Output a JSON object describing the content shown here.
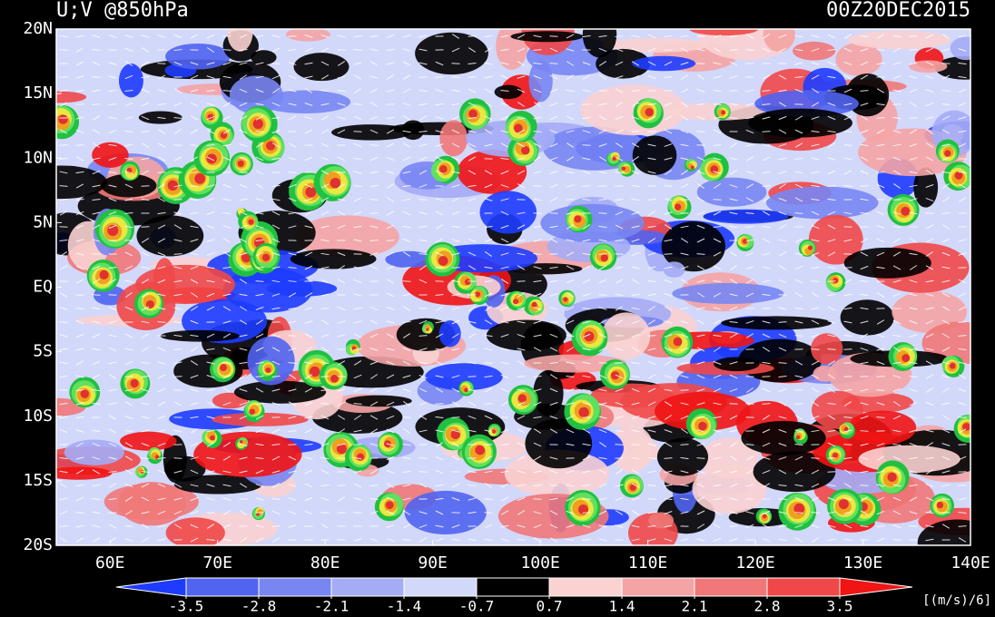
{
  "map": {
    "title": "U;V @850hPa",
    "time": "00Z20DEC2015",
    "xlim": [
      55,
      140
    ],
    "ylim": [
      -20,
      20
    ],
    "xticks": [
      {
        "value": 60,
        "label": "60E"
      },
      {
        "value": 70,
        "label": "70E"
      },
      {
        "value": 80,
        "label": "80E"
      },
      {
        "value": 90,
        "label": "90E"
      },
      {
        "value": 100,
        "label": "100E"
      },
      {
        "value": 110,
        "label": "110E"
      },
      {
        "value": 120,
        "label": "120E"
      },
      {
        "value": 130,
        "label": "130E"
      },
      {
        "value": 140,
        "label": "140E"
      }
    ],
    "yticks": [
      {
        "value": -20,
        "label": "20S"
      },
      {
        "value": -15,
        "label": "15S"
      },
      {
        "value": -10,
        "label": "10S"
      },
      {
        "value": -5,
        "label": "5S"
      },
      {
        "value": 0,
        "label": "EQ"
      },
      {
        "value": 5,
        "label": "5N"
      },
      {
        "value": 10,
        "label": "10N"
      },
      {
        "value": 15,
        "label": "15N"
      },
      {
        "value": 20,
        "label": "20N"
      }
    ],
    "colorbar": {
      "levels": [
        -3.5,
        -2.8,
        -2.1,
        -1.4,
        -0.7,
        0.7,
        1.4,
        2.1,
        2.8,
        3.5
      ],
      "colors": [
        "#1e3cff",
        "#5064f0",
        "#7886f2",
        "#a4acf6",
        "#d2d8fa",
        "#000000",
        "#fad2d2",
        "#f4a4a4",
        "#f07878",
        "#f04848",
        "#f01414"
      ],
      "unit": "[(m/s)/6]"
    }
  }
}
